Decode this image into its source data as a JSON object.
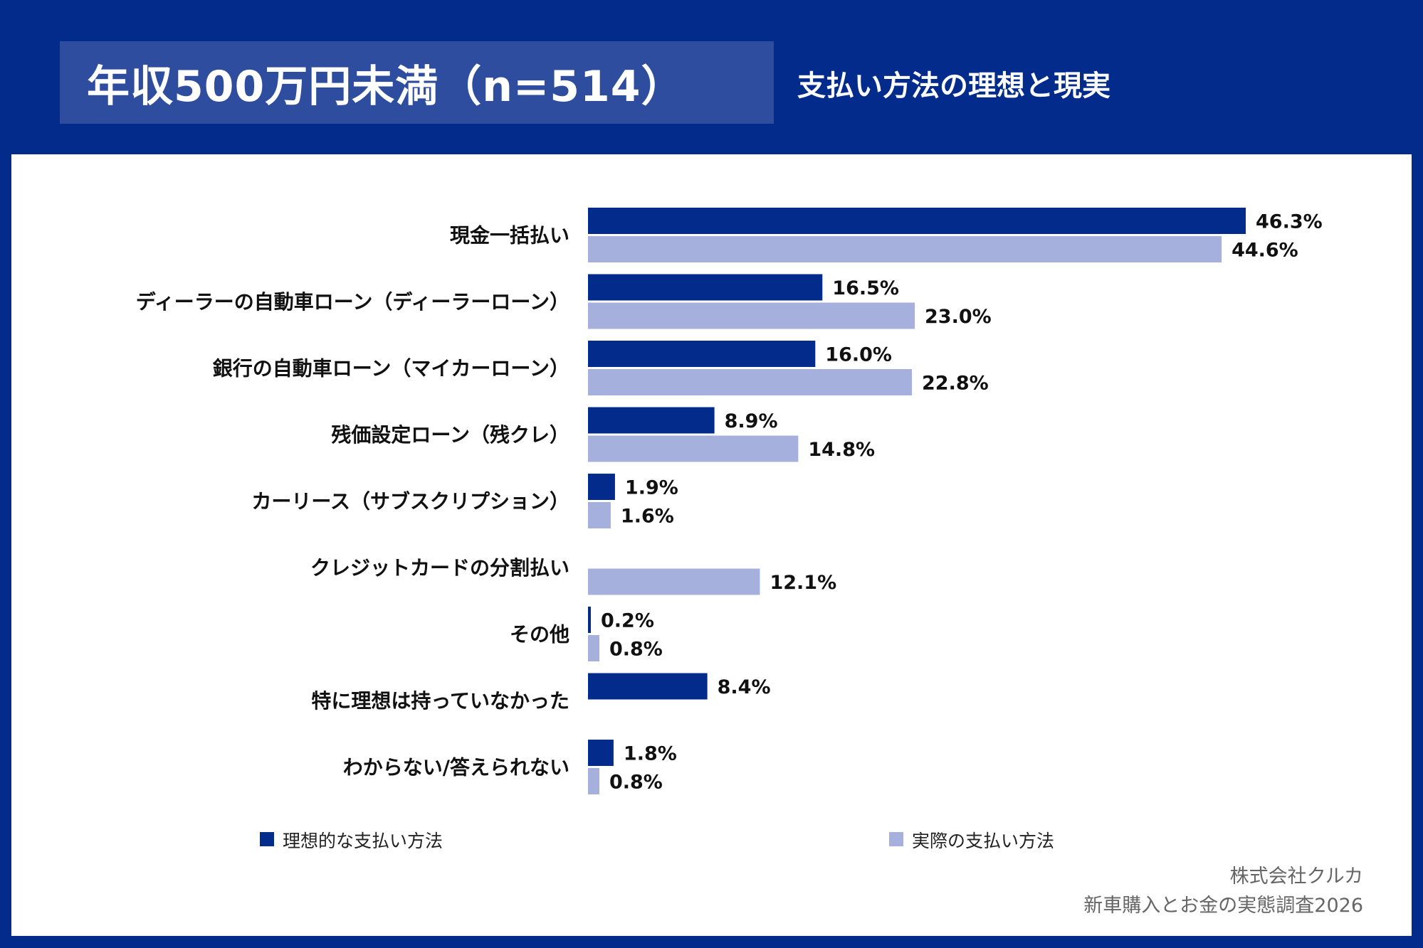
{
  "header": {
    "title": "年収500万円未満（n=514）",
    "subtitle": "支払い方法の理想と現実"
  },
  "colors": {
    "ideal": "#022b8c",
    "actual": "#a6b0dc"
  },
  "chart_data": {
    "type": "bar",
    "orientation": "horizontal",
    "title": "支払い方法の理想と現実",
    "categories": [
      "現金一括払い",
      "ディーラーの自動車ローン（ディーラーローン）",
      "銀行の自動車ローン（マイカーローン）",
      "残価設定ローン（残クレ）",
      "カーリース（サブスクリプション）",
      "クレジットカードの分割払い",
      "その他",
      "特に理想は持っていなかった",
      "わからない/答えられない"
    ],
    "series": [
      {
        "name": "理想的な支払い方法",
        "values": [
          46.3,
          16.5,
          16.0,
          8.9,
          1.9,
          null,
          0.2,
          8.4,
          1.8
        ],
        "labels": [
          "46.3%",
          "16.5%",
          "16.0%",
          "8.9%",
          "1.9%",
          null,
          "0.2%",
          "8.4%",
          "1.8%"
        ]
      },
      {
        "name": "実際の支払い方法",
        "values": [
          44.6,
          23.0,
          22.8,
          14.8,
          1.6,
          12.1,
          0.8,
          null,
          0.8
        ],
        "labels": [
          "44.6%",
          "23.0%",
          "22.8%",
          "14.8%",
          "1.6%",
          "12.1%",
          "0.8%",
          null,
          "0.8%"
        ]
      }
    ],
    "xlim": [
      0,
      50
    ],
    "unit": "%",
    "legend_position": "bottom"
  },
  "credit": {
    "line1": "株式会社クルカ",
    "line2": "新車購入とお金の実態調査2026"
  }
}
